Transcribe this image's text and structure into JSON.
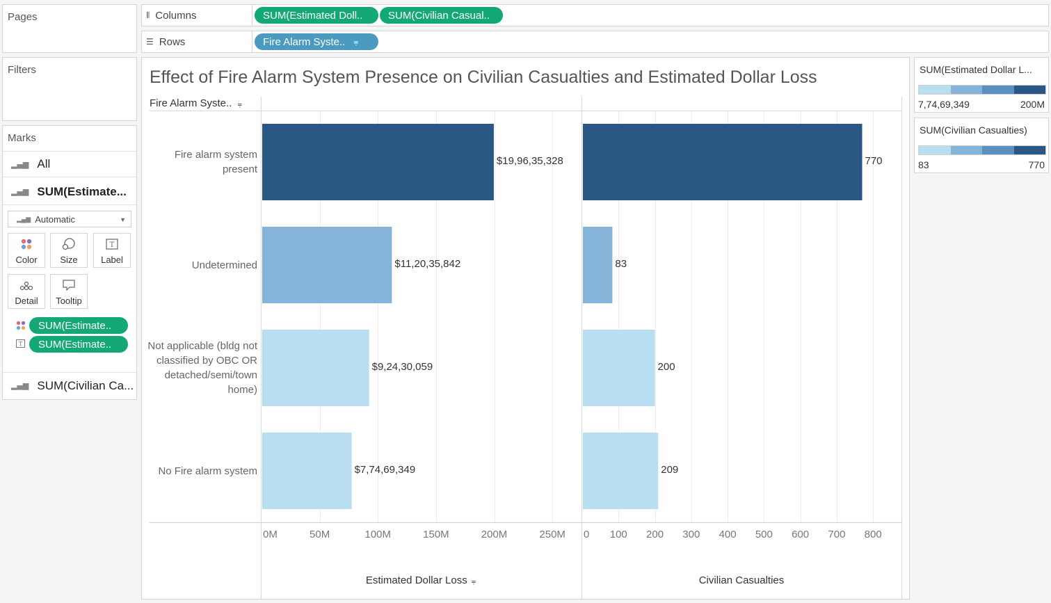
{
  "pages_label": "Pages",
  "filters_label": "Filters",
  "marks": {
    "title": "Marks",
    "rows": [
      "All",
      "SUM(Estimate...",
      "SUM(Civilian Ca..."
    ],
    "type_select": "Automatic",
    "buttons": [
      "Color",
      "Size",
      "Label",
      "Detail",
      "Tooltip"
    ],
    "fields": [
      "SUM(Estimate..",
      "SUM(Estimate.."
    ]
  },
  "columns_shelf": {
    "label": "Columns",
    "pills": [
      "SUM(Estimated Doll..",
      "SUM(Civilian Casual.."
    ]
  },
  "rows_shelf": {
    "label": "Rows",
    "pills": [
      "Fire Alarm Syste.."
    ]
  },
  "chart": {
    "title": "Effect of Fire Alarm System Presence on Civilian Casualties and Estimated Dollar Loss",
    "row_header": "Fire Alarm Syste..",
    "categories": [
      "Fire alarm system present",
      "Undetermined",
      "Not applicable (bldg not classified by OBC OR detached/semi/town home)",
      "No Fire alarm system"
    ],
    "left_ticks": [
      "0M",
      "50M",
      "100M",
      "150M",
      "200M",
      "250M"
    ],
    "right_ticks": [
      "0",
      "100",
      "200",
      "300",
      "400",
      "500",
      "600",
      "700",
      "800"
    ],
    "left_axis_title": "Estimated Dollar Loss",
    "right_axis_title": "Civilian Casualties"
  },
  "chart_data": {
    "type": "bar",
    "orientation": "horizontal",
    "categories": [
      "Fire alarm system present",
      "Undetermined",
      "Not applicable (bldg not classified by OBC OR detached/semi/town home)",
      "No Fire alarm system"
    ],
    "series": [
      {
        "name": "Estimated Dollar Loss",
        "values": [
          199635328,
          112035842,
          92430059,
          77469349
        ],
        "labels": [
          "$19,96,35,328",
          "$11,20,35,842",
          "$9,24,30,059",
          "$7,74,69,349"
        ],
        "xlim": [
          0,
          275000000
        ]
      },
      {
        "name": "Civilian Casualties",
        "values": [
          770,
          83,
          200,
          209
        ],
        "labels": [
          "770",
          "83",
          "200",
          "209"
        ],
        "xlim": [
          0,
          880
        ]
      }
    ],
    "title": "Effect of Fire Alarm System Presence on Civilian Casualties and Estimated Dollar Loss",
    "grid": true
  },
  "legends": [
    {
      "title": "SUM(Estimated Dollar L...",
      "min": "7,74,69,349",
      "max": "200M"
    },
    {
      "title": "SUM(Civilian Casualties)",
      "min": "83",
      "max": "770"
    }
  ],
  "colors": {
    "steps": [
      "#b9ddf1",
      "#86b4d9",
      "#5a8fbf",
      "#2a5783"
    ],
    "pill_green": "#13a876",
    "pill_blue": "#4a9bbf"
  }
}
